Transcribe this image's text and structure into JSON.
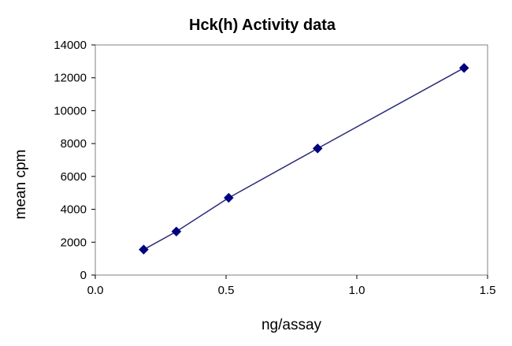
{
  "chart_data": {
    "type": "scatter",
    "title": "Hck(h) Activity data",
    "xlabel": "ng/assay",
    "ylabel": "mean cpm",
    "xlim": [
      0,
      1.5
    ],
    "ylim": [
      0,
      14000
    ],
    "x_ticks": [
      "0.0",
      "0.5",
      "1.0",
      "1.5"
    ],
    "y_ticks": [
      "0",
      "2000",
      "4000",
      "6000",
      "8000",
      "10000",
      "12000",
      "14000"
    ],
    "grid": false,
    "legend": "none",
    "marker": "diamond",
    "connected_line": true,
    "series_color": "#000080",
    "line_color": "#2a2a78",
    "series": [
      {
        "x": [
          0.185,
          0.31,
          0.51,
          0.85,
          1.41
        ],
        "y": [
          1550,
          2650,
          4700,
          7700,
          12600
        ]
      }
    ]
  }
}
